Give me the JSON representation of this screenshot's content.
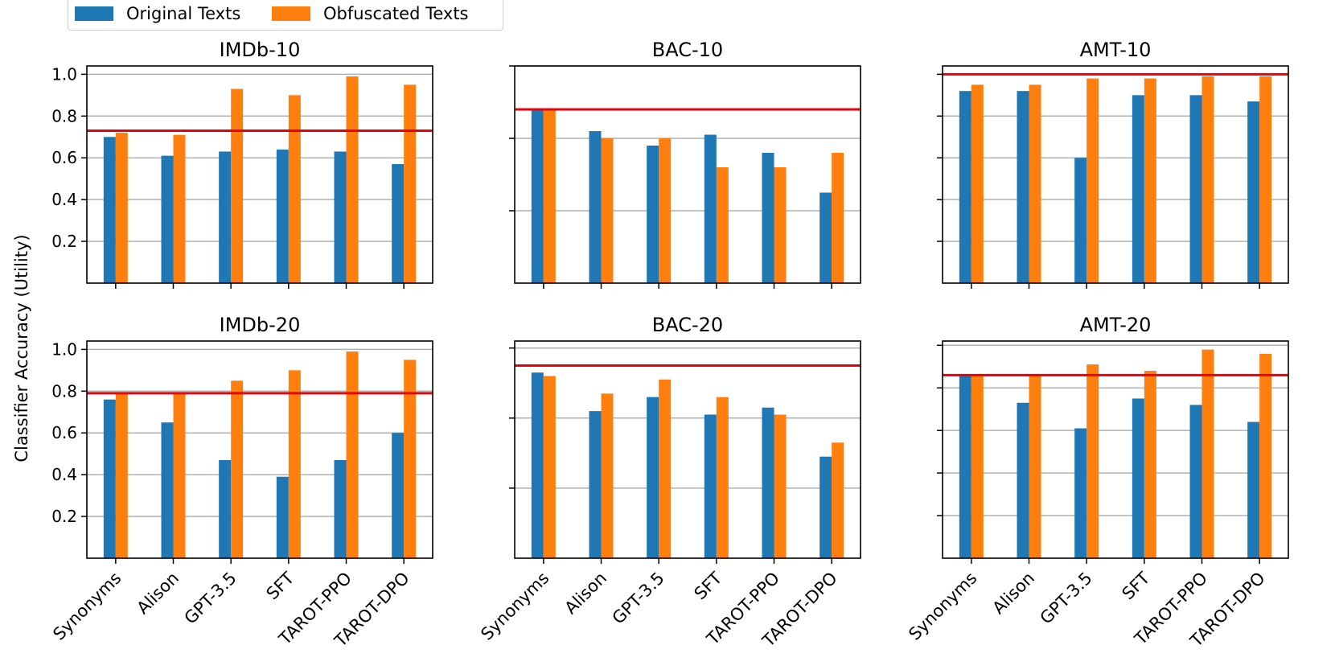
{
  "colors": {
    "original": "#1f77b4",
    "obfuscated": "#ff7f0e",
    "baseline": "#e8000b"
  },
  "legend": {
    "original": "Original Texts",
    "obfuscated": "Obfuscated Texts"
  },
  "ylabel": "Classifier Accuracy (Utility)",
  "y_ticks": [
    "0.2",
    "0.4",
    "0.6",
    "0.8",
    "1.0"
  ],
  "chart_data": [
    {
      "type": "bar",
      "title": "IMDb-10",
      "categories": [
        "Synonyms",
        "Alison",
        "GPT-3.5",
        "SFT",
        "TAROT-PPO",
        "TAROT-DPO"
      ],
      "series": [
        {
          "name": "Original Texts",
          "values": [
            0.7,
            0.61,
            0.63,
            0.64,
            0.63,
            0.57
          ]
        },
        {
          "name": "Obfuscated Texts",
          "values": [
            0.72,
            0.71,
            0.93,
            0.9,
            0.99,
            0.95
          ]
        }
      ],
      "baseline": 0.73,
      "ylim": [
        0,
        1.04
      ],
      "ylabel": "Classifier Accuracy (Utility)"
    },
    {
      "type": "bar",
      "title": "BAC-10",
      "categories": [
        "Synonyms",
        "Alison",
        "GPT-3.5",
        "SFT",
        "TAROT-PPO",
        "TAROT-DPO"
      ],
      "series": [
        {
          "name": "Original Texts",
          "values": [
            0.48,
            0.42,
            0.38,
            0.41,
            0.36,
            0.25
          ]
        },
        {
          "name": "Obfuscated Texts",
          "values": [
            0.48,
            0.4,
            0.4,
            0.32,
            0.32,
            0.36
          ]
        }
      ],
      "baseline": 0.48,
      "ylim": [
        0,
        0.6
      ]
    },
    {
      "type": "bar",
      "title": "AMT-10",
      "categories": [
        "Synonyms",
        "Alison",
        "GPT-3.5",
        "SFT",
        "TAROT-PPO",
        "TAROT-DPO"
      ],
      "series": [
        {
          "name": "Original Texts",
          "values": [
            0.92,
            0.92,
            0.6,
            0.9,
            0.9,
            0.87
          ]
        },
        {
          "name": "Obfuscated Texts",
          "values": [
            0.95,
            0.95,
            0.98,
            0.98,
            0.99,
            0.99
          ]
        }
      ],
      "baseline": 1.0,
      "ylim": [
        0,
        1.04
      ]
    },
    {
      "type": "bar",
      "title": "IMDb-20",
      "categories": [
        "Synonyms",
        "Alison",
        "GPT-3.5",
        "SFT",
        "TAROT-PPO",
        "TAROT-DPO"
      ],
      "series": [
        {
          "name": "Original Texts",
          "values": [
            0.76,
            0.65,
            0.47,
            0.39,
            0.47,
            0.6
          ]
        },
        {
          "name": "Obfuscated Texts",
          "values": [
            0.79,
            0.79,
            0.85,
            0.9,
            0.99,
            0.95
          ]
        }
      ],
      "baseline": 0.79,
      "ylim": [
        0,
        1.04
      ],
      "ylabel": "Classifier Accuracy (Utility)"
    },
    {
      "type": "bar",
      "title": "BAC-20",
      "categories": [
        "Synonyms",
        "Alison",
        "GPT-3.5",
        "SFT",
        "TAROT-PPO",
        "TAROT-DPO"
      ],
      "series": [
        {
          "name": "Original Texts",
          "values": [
            0.53,
            0.42,
            0.46,
            0.41,
            0.43,
            0.29
          ]
        },
        {
          "name": "Obfuscated Texts",
          "values": [
            0.52,
            0.47,
            0.51,
            0.46,
            0.41,
            0.33
          ]
        }
      ],
      "baseline": 0.55,
      "ylim": [
        0,
        0.62
      ]
    },
    {
      "type": "bar",
      "title": "AMT-20",
      "categories": [
        "Synonyms",
        "Alison",
        "GPT-3.5",
        "SFT",
        "TAROT-PPO",
        "TAROT-DPO"
      ],
      "series": [
        {
          "name": "Original Texts",
          "values": [
            0.86,
            0.73,
            0.61,
            0.75,
            0.72,
            0.64
          ]
        },
        {
          "name": "Obfuscated Texts",
          "values": [
            0.86,
            0.86,
            0.91,
            0.88,
            0.98,
            0.96
          ]
        }
      ],
      "baseline": 0.86,
      "ylim": [
        0,
        1.02
      ]
    }
  ]
}
